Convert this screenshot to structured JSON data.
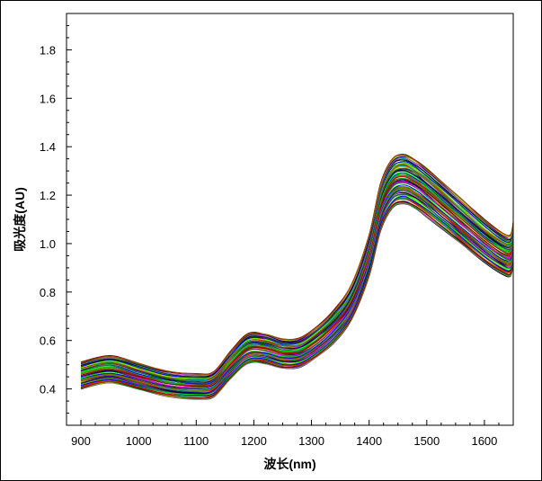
{
  "chart_data": {
    "type": "line",
    "title": "",
    "xlabel": "波长(nm)",
    "ylabel": "吸光度(AU)",
    "xlim": [
      875,
      1650
    ],
    "ylim": [
      0.25,
      1.95
    ],
    "x_ticks": [
      900,
      1000,
      1100,
      1200,
      1300,
      1400,
      1500,
      1600
    ],
    "y_ticks": [
      0.4,
      0.6,
      0.8,
      1.0,
      1.2,
      1.4,
      1.6,
      1.8
    ],
    "grid": false,
    "legend": "none",
    "x": [
      900,
      950,
      1000,
      1050,
      1100,
      1130,
      1160,
      1190,
      1220,
      1250,
      1280,
      1310,
      1340,
      1370,
      1400,
      1420,
      1440,
      1460,
      1480,
      1500,
      1530,
      1560,
      1600,
      1630,
      1645,
      1650
    ],
    "mean_spectrum": [
      0.455,
      0.48,
      0.45,
      0.42,
      0.41,
      0.42,
      0.5,
      0.565,
      0.565,
      0.545,
      0.55,
      0.595,
      0.66,
      0.76,
      0.95,
      1.15,
      1.245,
      1.265,
      1.245,
      1.21,
      1.15,
      1.09,
      1.01,
      0.96,
      0.95,
      1.0
    ],
    "series_count": 80,
    "spread_range": [
      -0.11,
      0.11
    ],
    "series_colors": [
      "#000000",
      "#00c000",
      "#ff0000",
      "#000080",
      "#008080",
      "#808000",
      "#800000",
      "#ff00ff",
      "#0000ff",
      "#00a0a0",
      "#c0c000",
      "#404040",
      "#80ff00",
      "#a05000",
      "#808080",
      "#00ff00",
      "#c00000",
      "#008000"
    ]
  }
}
